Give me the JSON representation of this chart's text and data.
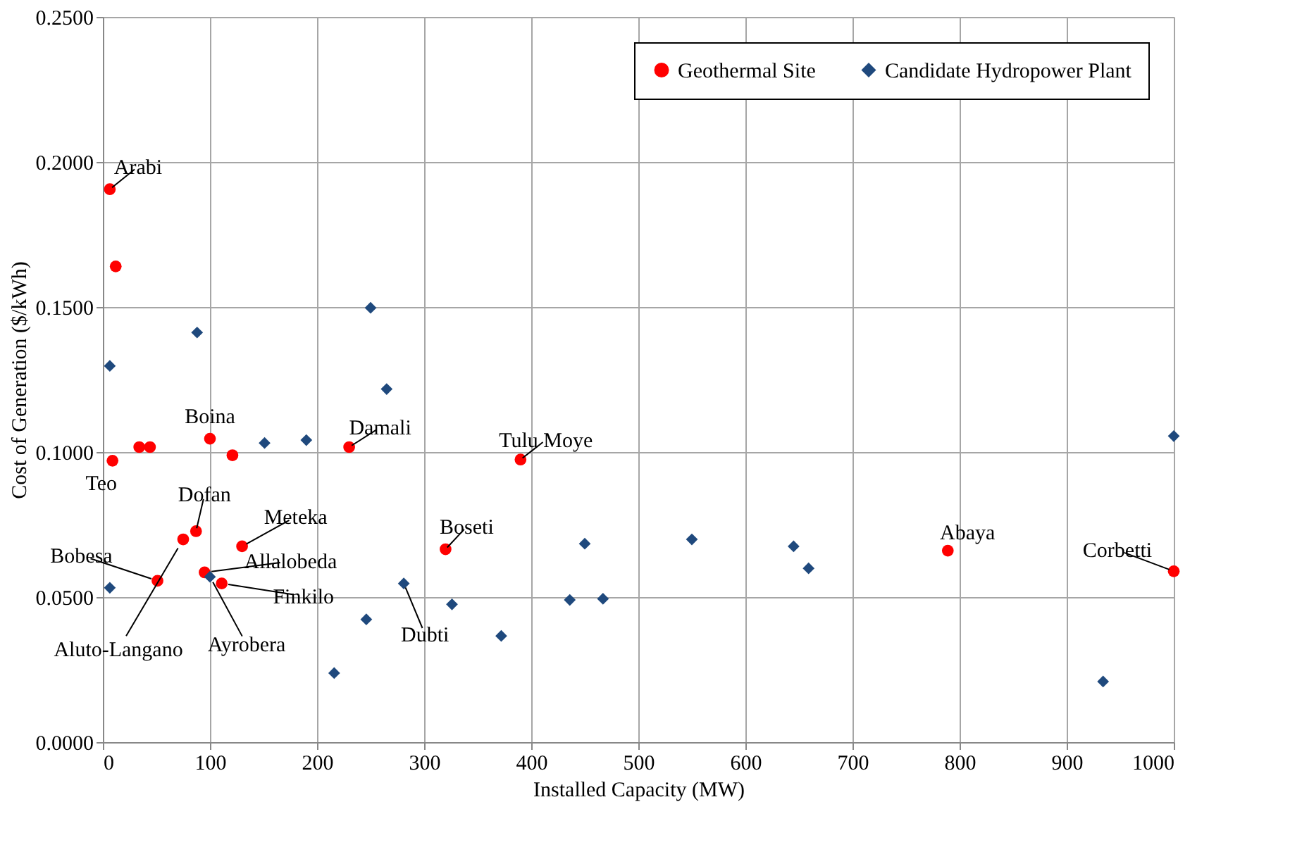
{
  "chart_data": {
    "type": "scatter",
    "xlabel": "Installed Capacity (MW)",
    "ylabel": "Cost of Generation  ($/kWh)",
    "xlim": [
      0,
      1000
    ],
    "xticks": [
      0,
      100,
      200,
      300,
      400,
      500,
      600,
      700,
      800,
      900,
      1000
    ],
    "ylim": [
      0,
      0.25
    ],
    "yticks": [
      {
        "value": 0,
        "label": "0.0000"
      },
      {
        "value": 0.05,
        "label": "0.0500"
      },
      {
        "value": 0.1,
        "label": "0.1000"
      },
      {
        "value": 0.15,
        "label": "0.1500"
      },
      {
        "value": 0.2,
        "label": "0.2000"
      },
      {
        "value": 0.25,
        "label": "0.2500"
      }
    ],
    "grid": true,
    "legend": "top right",
    "series": [
      {
        "name": "Geothermal Site",
        "color": "#ff0000",
        "marker": "circle",
        "x": [
          6.5,
          12,
          9,
          34,
          44,
          100,
          121,
          230,
          390,
          87,
          75,
          51,
          130,
          95,
          111,
          320,
          789,
          1000
        ],
        "values": [
          0.1906,
          0.164,
          0.097,
          0.1017,
          0.1017,
          0.1046,
          0.0989,
          0.1017,
          0.0974,
          0.0727,
          0.0699,
          0.0556,
          0.0675,
          0.0585,
          0.0547,
          0.0665,
          0.066,
          0.0589
        ]
      },
      {
        "name": "Candidate Hydropower Plant",
        "color": "#1f497d",
        "marker": "diamond",
        "x": [
          6.5,
          88,
          250,
          265,
          151,
          190,
          6.5,
          100,
          281,
          246,
          326,
          216,
          372,
          436,
          467,
          450,
          550,
          645,
          659,
          934,
          1000
        ],
        "values": [
          0.1297,
          0.1412,
          0.1497,
          0.1217,
          0.1031,
          0.1041,
          0.0532,
          0.057,
          0.0547,
          0.0423,
          0.0475,
          0.0238,
          0.0366,
          0.049,
          0.0494,
          0.0684,
          0.0699,
          0.0675,
          0.0599,
          0.0209,
          0.1055
        ]
      }
    ],
    "annotations": [
      {
        "text": "Arabi",
        "x": 6.5,
        "y": 0.1906
      },
      {
        "text": "Boina",
        "x": 100,
        "y": 0.1046
      },
      {
        "text": "Damali",
        "x": 230,
        "y": 0.1017
      },
      {
        "text": "Teo",
        "x": 9,
        "y": 0.097
      },
      {
        "text": "Tulu Moye",
        "x": 390,
        "y": 0.0974
      },
      {
        "text": "Dofan",
        "x": 87,
        "y": 0.0727
      },
      {
        "text": "Aluto-Langano",
        "x": 75,
        "y": 0.0699
      },
      {
        "text": "Bobesa",
        "x": 51,
        "y": 0.0556
      },
      {
        "text": "Meteka",
        "x": 130,
        "y": 0.0675
      },
      {
        "text": "Allalobeda",
        "x": 95,
        "y": 0.0585
      },
      {
        "text": "Ayrobera",
        "x": 100,
        "y": 0.057
      },
      {
        "text": "Finkilo",
        "x": 111,
        "y": 0.0547
      },
      {
        "text": "Boseti",
        "x": 320,
        "y": 0.0665
      },
      {
        "text": "Dubti",
        "x": 281,
        "y": 0.0547
      },
      {
        "text": "Abaya",
        "x": 789,
        "y": 0.066
      },
      {
        "text": "Corbetti",
        "x": 1000,
        "y": 0.0589
      }
    ]
  }
}
